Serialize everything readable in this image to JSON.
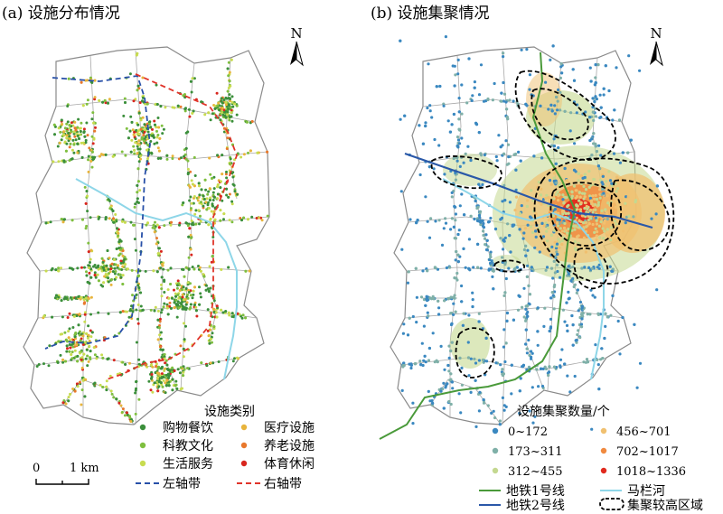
{
  "panels": {
    "a": {
      "title": "(a) 设施分布情况",
      "legend_title": "设施类别",
      "categories": [
        {
          "label": "购物餐饮",
          "color": "#3b8f3b"
        },
        {
          "label": "科教文化",
          "color": "#7fbf3f"
        },
        {
          "label": "生活服务",
          "color": "#c8dc50"
        },
        {
          "label": "医疗设施",
          "color": "#e8b43c"
        },
        {
          "label": "养老设施",
          "color": "#e8782c"
        },
        {
          "label": "体育休闲",
          "color": "#d8261e"
        }
      ],
      "lines": [
        {
          "label": "左轴带",
          "color": "#2850a8",
          "style": "dashed"
        },
        {
          "label": "右轴带",
          "color": "#e0342a",
          "style": "dashed"
        }
      ],
      "scale": {
        "zero": "0",
        "length": "1 km"
      }
    },
    "b": {
      "title": "(b) 设施集聚情况",
      "legend_title": "设施集聚数量/个",
      "classes": [
        {
          "label": "0~172",
          "color": "#3a88c0"
        },
        {
          "label": "173~311",
          "color": "#7fb0a8"
        },
        {
          "label": "312~455",
          "color": "#c4d890"
        },
        {
          "label": "456~701",
          "color": "#f0c070"
        },
        {
          "label": "702~1017",
          "color": "#f08a40"
        },
        {
          "label": "1018~1336",
          "color": "#e02a1e"
        }
      ],
      "lines": [
        {
          "label": "地铁1号线",
          "color": "#4a9a3a"
        },
        {
          "label": "马栏河",
          "color": "#8ed6e8"
        },
        {
          "label": "地铁2号线",
          "color": "#2a58a8"
        },
        {
          "label": "集聚较高区域",
          "color": "#000000"
        }
      ]
    }
  },
  "north_label": "N",
  "colors": {
    "boundary": "#8a8a8a",
    "river": "#8ed6e8"
  }
}
